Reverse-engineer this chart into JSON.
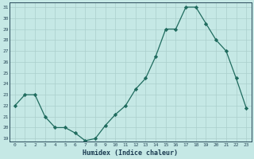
{
  "x": [
    0,
    1,
    2,
    3,
    4,
    5,
    6,
    7,
    8,
    9,
    10,
    11,
    12,
    13,
    14,
    15,
    16,
    17,
    18,
    19,
    20,
    21,
    22,
    23
  ],
  "y": [
    22,
    23,
    23,
    21,
    20,
    20,
    19.5,
    18.8,
    19,
    20.2,
    21.2,
    22,
    23.5,
    24.5,
    26.5,
    29,
    29,
    31,
    31,
    29.5,
    28,
    27,
    24.5,
    21.8
  ],
  "xlabel": "Humidex (Indice chaleur)",
  "line_color": "#1f6b5e",
  "marker_color": "#1f6b5e",
  "bg_color": "#c5e8e5",
  "grid_color": "#aacfcc",
  "tick_color": "#2a4a5a",
  "label_color": "#1a3a50",
  "ylim_min": 18.7,
  "ylim_max": 31.4,
  "xlim_min": -0.5,
  "xlim_max": 23.5,
  "yticks": [
    19,
    20,
    21,
    22,
    23,
    24,
    25,
    26,
    27,
    28,
    29,
    30,
    31
  ],
  "xticks": [
    0,
    1,
    2,
    3,
    4,
    5,
    6,
    7,
    8,
    9,
    10,
    11,
    12,
    13,
    14,
    15,
    16,
    17,
    18,
    19,
    20,
    21,
    22,
    23
  ]
}
